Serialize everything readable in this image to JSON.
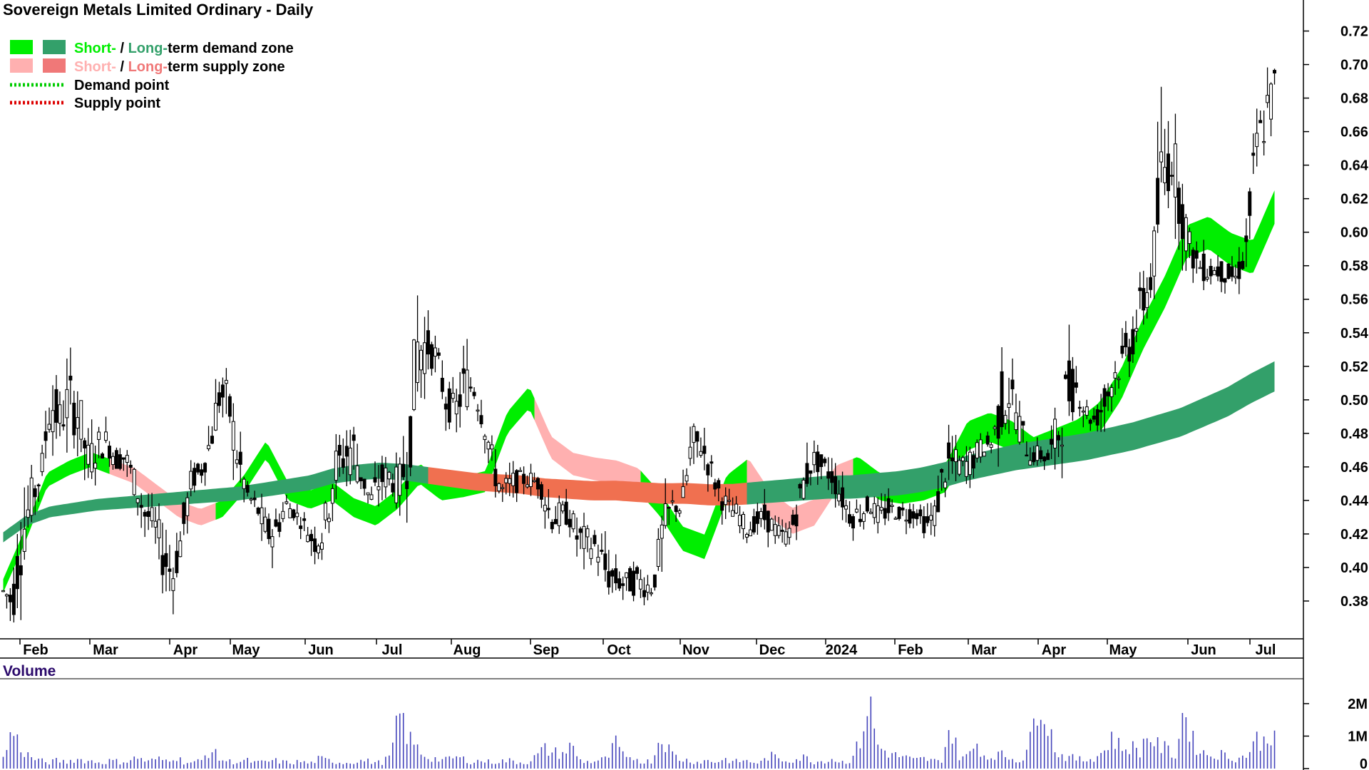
{
  "chart_data": [
    {
      "type": "candlestick",
      "title": "Sovereign Metals Limited Ordinary - Daily",
      "y_axis": {
        "ticks": [
          "0.38",
          "0.40",
          "0.42",
          "0.44",
          "0.46",
          "0.48",
          "0.50",
          "0.52",
          "0.54",
          "0.56",
          "0.58",
          "0.60",
          "0.62",
          "0.64",
          "0.66",
          "0.68",
          "0.70",
          "0.72"
        ],
        "range": [
          0.36,
          0.73
        ],
        "position": "right"
      },
      "x_axis": {
        "ticks": [
          "Feb",
          "Mar",
          "Apr",
          "May",
          "Jun",
          "Jul",
          "Aug",
          "Sep",
          "Oct",
          "Nov",
          "Dec",
          "2024",
          "Feb",
          "Mar",
          "Apr",
          "May",
          "Jun",
          "Jul"
        ]
      },
      "legend": {
        "placement": "top-left",
        "items": [
          {
            "short_label": "Short-",
            "separator": " / ",
            "long_label": "Long-",
            "suffix": "term demand zone",
            "short_color": "#00ee00",
            "long_color": "#33a06a"
          },
          {
            "short_label": "Short-",
            "separator": " / ",
            "long_label": "Long-",
            "suffix": "term supply zone",
            "short_color": "#ffb0b0",
            "long_color": "#f07878"
          },
          {
            "label": "Demand point",
            "color": "#00cc00",
            "style": "dotted"
          },
          {
            "label": "Supply point",
            "color": "#dd0000",
            "style": "dotted"
          }
        ]
      },
      "price_anchors": [
        [
          0.388,
          0.381,
          0.387,
          0.385
        ],
        [
          0.425,
          0.372,
          0.378,
          0.382
        ],
        [
          0.455,
          0.372,
          0.405,
          0.435
        ],
        [
          0.465,
          0.415,
          0.42,
          0.46
        ],
        [
          0.47,
          0.445,
          0.446,
          0.465
        ],
        [
          0.53,
          0.462,
          0.51,
          0.49
        ],
        [
          0.51,
          0.46,
          0.495,
          0.48
        ],
        [
          0.535,
          0.47,
          0.48,
          0.52
        ],
        [
          0.525,
          0.46,
          0.51,
          0.475
        ],
        [
          0.5,
          0.45,
          0.47,
          0.455
        ],
        [
          0.495,
          0.455,
          0.46,
          0.485
        ],
        [
          0.49,
          0.46,
          0.485,
          0.466
        ],
        [
          0.485,
          0.455,
          0.47,
          0.46
        ],
        [
          0.48,
          0.455,
          0.462,
          0.47
        ],
        [
          0.475,
          0.44,
          0.455,
          0.445
        ],
        [
          0.46,
          0.42,
          0.44,
          0.425
        ],
        [
          0.44,
          0.415,
          0.425,
          0.43
        ],
        [
          0.44,
          0.38,
          0.425,
          0.39
        ],
        [
          0.42,
          0.38,
          0.39,
          0.4
        ],
        [
          0.445,
          0.39,
          0.4,
          0.44
        ],
        [
          0.47,
          0.44,
          0.45,
          0.455
        ],
        [
          0.47,
          0.445,
          0.455,
          0.46
        ],
        [
          0.5,
          0.46,
          0.46,
          0.49
        ],
        [
          0.535,
          0.48,
          0.49,
          0.52
        ],
        [
          0.525,
          0.47,
          0.51,
          0.48
        ],
        [
          0.49,
          0.44,
          0.48,
          0.445
        ],
        [
          0.455,
          0.435,
          0.445,
          0.44
        ],
        [
          0.45,
          0.425,
          0.44,
          0.43
        ],
        [
          0.44,
          0.4,
          0.43,
          0.41
        ],
        [
          0.44,
          0.405,
          0.41,
          0.435
        ],
        [
          0.445,
          0.42,
          0.435,
          0.44
        ],
        [
          0.44,
          0.425,
          0.435,
          0.43
        ],
        [
          0.44,
          0.42,
          0.43,
          0.42
        ],
        [
          0.43,
          0.4,
          0.42,
          0.41
        ],
        [
          0.44,
          0.405,
          0.41,
          0.43
        ],
        [
          0.495,
          0.42,
          0.43,
          0.48
        ],
        [
          0.49,
          0.45,
          0.47,
          0.46
        ],
        [
          0.52,
          0.44,
          0.46,
          0.485
        ],
        [
          0.47,
          0.44,
          0.465,
          0.445
        ],
        [
          0.45,
          0.435,
          0.44,
          0.44
        ],
        [
          0.475,
          0.43,
          0.44,
          0.465
        ],
        [
          0.47,
          0.445,
          0.46,
          0.45
        ],
        [
          0.475,
          0.43,
          0.45,
          0.445
        ],
        [
          0.51,
          0.44,
          0.445,
          0.49
        ],
        [
          0.61,
          0.48,
          0.49,
          0.57
        ],
        [
          0.55,
          0.51,
          0.53,
          0.535
        ],
        [
          0.545,
          0.51,
          0.53,
          0.52
        ],
        [
          0.52,
          0.48,
          0.51,
          0.49
        ],
        [
          0.51,
          0.475,
          0.49,
          0.495
        ],
        [
          0.54,
          0.48,
          0.5,
          0.52
        ],
        [
          0.525,
          0.49,
          0.51,
          0.505
        ],
        [
          0.51,
          0.47,
          0.505,
          0.475
        ],
        [
          0.48,
          0.44,
          0.47,
          0.45
        ],
        [
          0.465,
          0.435,
          0.45,
          0.44
        ],
        [
          0.47,
          0.44,
          0.44,
          0.46
        ],
        [
          0.465,
          0.445,
          0.455,
          0.45
        ],
        [
          0.46,
          0.44,
          0.45,
          0.455
        ],
        [
          0.46,
          0.44,
          0.455,
          0.445
        ],
        [
          0.455,
          0.41,
          0.445,
          0.42
        ],
        [
          0.45,
          0.415,
          0.42,
          0.44
        ],
        [
          0.445,
          0.42,
          0.44,
          0.425
        ],
        [
          0.44,
          0.4,
          0.425,
          0.41
        ],
        [
          0.43,
          0.395,
          0.41,
          0.42
        ],
        [
          0.43,
          0.4,
          0.42,
          0.405
        ],
        [
          0.42,
          0.37,
          0.405,
          0.39
        ],
        [
          0.41,
          0.38,
          0.39,
          0.395
        ],
        [
          0.405,
          0.38,
          0.395,
          0.385
        ],
        [
          0.41,
          0.375,
          0.385,
          0.4
        ],
        [
          0.405,
          0.375,
          0.4,
          0.38
        ],
        [
          0.395,
          0.375,
          0.385,
          0.39
        ],
        [
          0.45,
          0.39,
          0.4,
          0.44
        ],
        [
          0.445,
          0.425,
          0.435,
          0.44
        ],
        [
          0.445,
          0.425,
          0.44,
          0.43
        ],
        [
          0.51,
          0.44,
          0.445,
          0.49
        ],
        [
          0.5,
          0.465,
          0.48,
          0.47
        ],
        [
          0.48,
          0.45,
          0.465,
          0.455
        ],
        [
          0.46,
          0.43,
          0.45,
          0.44
        ],
        [
          0.45,
          0.425,
          0.44,
          0.43
        ],
        [
          0.44,
          0.42,
          0.43,
          0.435
        ],
        [
          0.435,
          0.415,
          0.425,
          0.42
        ],
        [
          0.44,
          0.42,
          0.42,
          0.435
        ],
        [
          0.45,
          0.42,
          0.435,
          0.425
        ],
        [
          0.435,
          0.415,
          0.425,
          0.42
        ],
        [
          0.425,
          0.405,
          0.415,
          0.42
        ],
        [
          0.44,
          0.415,
          0.42,
          0.435
        ],
        [
          0.475,
          0.43,
          0.435,
          0.465
        ],
        [
          0.48,
          0.455,
          0.46,
          0.47
        ],
        [
          0.475,
          0.45,
          0.465,
          0.455
        ],
        [
          0.47,
          0.44,
          0.46,
          0.45
        ],
        [
          0.46,
          0.43,
          0.45,
          0.435
        ],
        [
          0.445,
          0.42,
          0.435,
          0.425
        ],
        [
          0.445,
          0.415,
          0.425,
          0.44
        ],
        [
          0.45,
          0.43,
          0.44,
          0.435
        ],
        [
          0.445,
          0.42,
          0.435,
          0.425
        ],
        [
          0.445,
          0.42,
          0.43,
          0.44
        ],
        [
          0.44,
          0.425,
          0.435,
          0.43
        ],
        [
          0.445,
          0.42,
          0.43,
          0.435
        ],
        [
          0.44,
          0.425,
          0.435,
          0.43
        ],
        [
          0.44,
          0.415,
          0.43,
          0.42
        ],
        [
          0.45,
          0.42,
          0.425,
          0.44
        ],
        [
          0.5,
          0.44,
          0.44,
          0.48
        ],
        [
          0.485,
          0.45,
          0.47,
          0.455
        ],
        [
          0.475,
          0.445,
          0.455,
          0.465
        ],
        [
          0.485,
          0.455,
          0.46,
          0.47
        ],
        [
          0.49,
          0.465,
          0.475,
          0.47
        ],
        [
          0.48,
          0.465,
          0.47,
          0.478
        ],
        [
          0.54,
          0.465,
          0.475,
          0.52
        ],
        [
          0.53,
          0.49,
          0.51,
          0.5
        ],
        [
          0.5,
          0.46,
          0.49,
          0.475
        ],
        [
          0.48,
          0.455,
          0.47,
          0.465
        ],
        [
          0.475,
          0.455,
          0.465,
          0.47
        ],
        [
          0.48,
          0.455,
          0.47,
          0.46
        ],
        [
          0.52,
          0.455,
          0.46,
          0.5
        ],
        [
          0.555,
          0.48,
          0.49,
          0.52
        ],
        [
          0.52,
          0.49,
          0.515,
          0.5
        ],
        [
          0.51,
          0.48,
          0.5,
          0.485
        ],
        [
          0.495,
          0.475,
          0.485,
          0.49
        ],
        [
          0.525,
          0.48,
          0.49,
          0.51
        ],
        [
          0.535,
          0.5,
          0.51,
          0.52
        ],
        [
          0.545,
          0.505,
          0.52,
          0.53
        ],
        [
          0.57,
          0.51,
          0.53,
          0.55
        ],
        [
          0.58,
          0.53,
          0.55,
          0.565
        ],
        [
          0.6,
          0.55,
          0.56,
          0.59
        ],
        [
          0.71,
          0.58,
          0.59,
          0.67
        ],
        [
          0.68,
          0.61,
          0.66,
          0.64
        ],
        [
          0.655,
          0.58,
          0.64,
          0.6
        ],
        [
          0.61,
          0.57,
          0.6,
          0.58
        ],
        [
          0.59,
          0.56,
          0.575,
          0.585
        ],
        [
          0.595,
          0.565,
          0.58,
          0.575
        ],
        [
          0.59,
          0.565,
          0.575,
          0.58
        ],
        [
          0.59,
          0.565,
          0.58,
          0.57
        ],
        [
          0.585,
          0.565,
          0.57,
          0.575
        ],
        [
          0.62,
          0.57,
          0.575,
          0.61
        ],
        [
          0.69,
          0.625,
          0.63,
          0.665
        ],
        [
          0.7,
          0.64,
          0.66,
          0.675
        ],
        [
          0.72,
          0.655,
          0.665,
          0.705
        ]
      ],
      "volume": {
        "label": "Volume",
        "ticks": [
          "0",
          "1M",
          "2M"
        ],
        "range": [
          0,
          2700000
        ],
        "bar_color": "#4444bb"
      },
      "volume_anchors": [
        300000,
        1200000,
        600000,
        350000,
        250000,
        180000,
        250000,
        200000,
        300000,
        250000,
        220000,
        180000,
        250000,
        200000,
        250000,
        350000,
        200000,
        300000,
        250000,
        400000,
        200000,
        180000,
        250000,
        600000,
        300000,
        220000,
        200000,
        250000,
        180000,
        200000,
        250000,
        200000,
        180000,
        220000,
        150000,
        300000,
        250000,
        200000,
        180000,
        220000,
        250000,
        200000,
        180000,
        400000,
        1700000,
        900000,
        600000,
        350000,
        300000,
        250000,
        350000,
        300000,
        200000,
        250000,
        200000,
        220000,
        250000,
        200000,
        180000,
        350000,
        600000,
        500000,
        450000,
        700000,
        250000,
        200000,
        250000,
        300000,
        800000,
        250000,
        350000,
        200000,
        250000,
        1100000,
        500000,
        300000,
        250000,
        200000,
        250000,
        200000,
        300000,
        200000,
        250000,
        200000,
        180000,
        400000,
        300000,
        250000,
        300000,
        350000,
        200000,
        250000,
        300000,
        200000,
        250000,
        800000,
        2100000,
        700000,
        500000,
        400000,
        350000,
        250000,
        300000,
        250000,
        200000,
        1300000,
        400000,
        350000,
        800000,
        300000,
        450000,
        400000,
        300000,
        250000,
        900000,
        2600000,
        1200000,
        450000,
        350000,
        300000,
        250000,
        350000,
        500000,
        1000000,
        600000,
        700000,
        500000,
        1100000,
        700000,
        600000,
        400000,
        1900000,
        800000,
        500000,
        400000,
        450000,
        350000,
        300000,
        450000,
        900000,
        800000,
        1400000
      ],
      "zones": {
        "short_term_ma_anchors": [
          0.385,
          0.415,
          0.448,
          0.455,
          0.46,
          0.455,
          0.45,
          0.44,
          0.43,
          0.425,
          0.43,
          0.445,
          0.465,
          0.44,
          0.435,
          0.44,
          0.43,
          0.425,
          0.435,
          0.45,
          0.44,
          0.442,
          0.445,
          0.48,
          0.495,
          0.465,
          0.455,
          0.452,
          0.45,
          0.445,
          0.43,
          0.41,
          0.405,
          0.44,
          0.45,
          0.43,
          0.42,
          0.425,
          0.445,
          0.45,
          0.44,
          0.438,
          0.44,
          0.445,
          0.47,
          0.475,
          0.47,
          0.46,
          0.465,
          0.47,
          0.48,
          0.5,
          0.53,
          0.555,
          0.585,
          0.59,
          0.58,
          0.575,
          0.605
        ],
        "long_term_ma_anchors": [
          0.415,
          0.425,
          0.43,
          0.432,
          0.434,
          0.435,
          0.436,
          0.437,
          0.438,
          0.439,
          0.44,
          0.442,
          0.444,
          0.446,
          0.45,
          0.452,
          0.453,
          0.452,
          0.45,
          0.448,
          0.446,
          0.445,
          0.444,
          0.442,
          0.441,
          0.44,
          0.44,
          0.439,
          0.438,
          0.438,
          0.437,
          0.437,
          0.438,
          0.439,
          0.44,
          0.441,
          0.441,
          0.442,
          0.443,
          0.445,
          0.448,
          0.452,
          0.455,
          0.458,
          0.46,
          0.462,
          0.464,
          0.467,
          0.47,
          0.474,
          0.478,
          0.484,
          0.49,
          0.498,
          0.505
        ],
        "demand_short_color": "#00ee00",
        "demand_long_color": "#33a06a",
        "supply_short_color": "#ffb0b0",
        "supply_long_color": "#f07050"
      },
      "grid": false
    }
  ]
}
